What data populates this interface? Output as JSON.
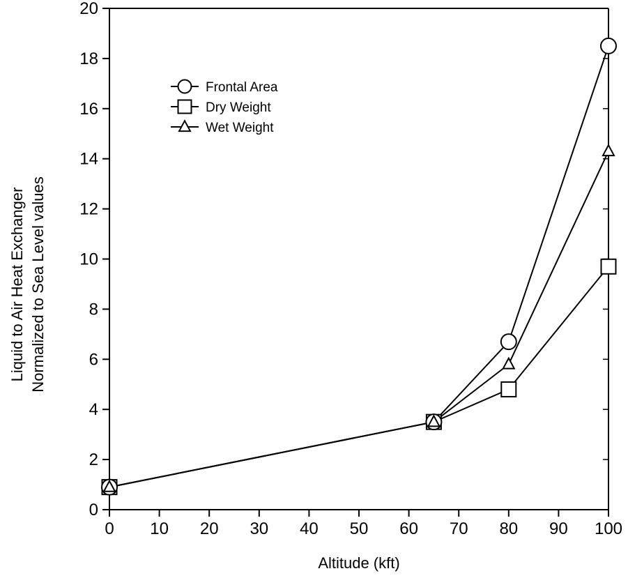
{
  "chart_data": {
    "type": "line",
    "xlabel": "Altitude (kft)",
    "ylabel": [
      "Liquid to Air Heat Exchanger",
      "Normalized to Sea Level values"
    ],
    "xlim": [
      0,
      100
    ],
    "ylim": [
      0,
      20
    ],
    "x_ticks": [
      "0",
      "10",
      "20",
      "30",
      "40",
      "50",
      "60",
      "70",
      "80",
      "90",
      "100"
    ],
    "y_ticks": [
      "0",
      "2",
      "4",
      "6",
      "8",
      "10",
      "12",
      "14",
      "16",
      "18",
      "20"
    ],
    "grid": false,
    "legend_position": "top-left",
    "series": [
      {
        "name": "Frontal Area",
        "marker": "circle",
        "x": [
          0,
          65,
          80,
          100
        ],
        "y": [
          0.9,
          3.5,
          6.7,
          18.5
        ]
      },
      {
        "name": "Dry Weight",
        "marker": "square",
        "x": [
          0,
          65,
          80,
          100
        ],
        "y": [
          0.9,
          3.5,
          4.8,
          9.7
        ]
      },
      {
        "name": "Wet Weight",
        "marker": "triangle",
        "x": [
          0,
          65,
          80,
          100
        ],
        "y": [
          0.9,
          3.5,
          5.8,
          14.3
        ]
      }
    ]
  }
}
